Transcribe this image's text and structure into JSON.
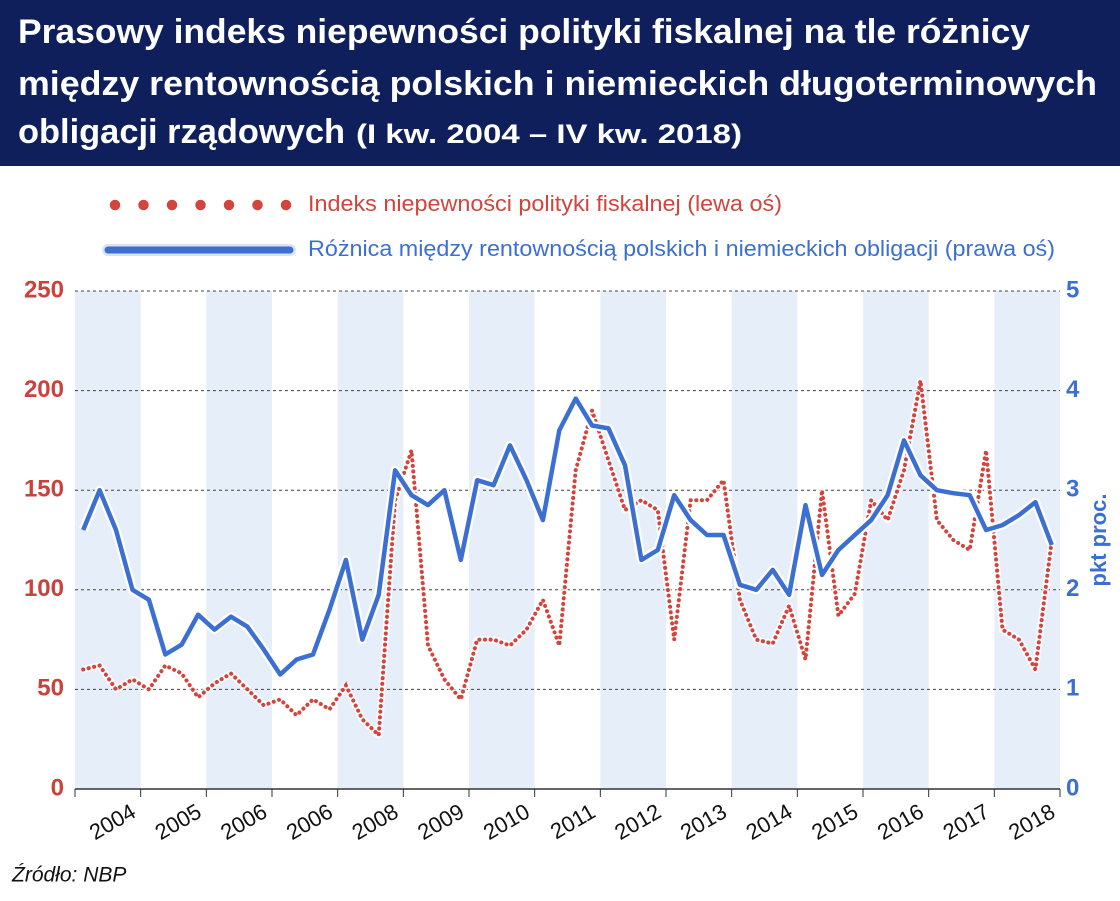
{
  "chart_data": {
    "type": "line",
    "title_lines": [
      "Prasowy indeks niepewności polityki fiskalnej na tle różnicy",
      "między rentownością polskich i niemieckich długoterminowych",
      "obligacji rządowych"
    ],
    "title_period": "(I kw. 2004 – IV kw. 2018)",
    "y2_label": "pkt proc.",
    "source": "Źródło: NBP",
    "categories": [
      null,
      null,
      null,
      "2004",
      null,
      null,
      null,
      "2005",
      null,
      null,
      null,
      "2006",
      null,
      null,
      null,
      "2006",
      null,
      null,
      null,
      "2008",
      null,
      null,
      null,
      "2009",
      null,
      null,
      null,
      "2010",
      null,
      null,
      null,
      "2011",
      null,
      null,
      null,
      "2012",
      null,
      null,
      null,
      "2013",
      null,
      null,
      null,
      "2014",
      null,
      null,
      null,
      "2015",
      null,
      null,
      null,
      "2016",
      null,
      null,
      null,
      "2017",
      null,
      null,
      null,
      "2018"
    ],
    "series": [
      {
        "name": "Indeks niepewności polityki fiskalnej (lewa oś)",
        "color": "#d2443c",
        "style": "dotted",
        "values": [
          60,
          62,
          50,
          55,
          50,
          62,
          58,
          46,
          53,
          58,
          50,
          42,
          45,
          37,
          45,
          40,
          52,
          35,
          27,
          145,
          170,
          72,
          55,
          45,
          75,
          75,
          72,
          80,
          95,
          72,
          160,
          190,
          165,
          140,
          145,
          140,
          75,
          145,
          145,
          155,
          95,
          75,
          73,
          92,
          65,
          150,
          87,
          98,
          145,
          135,
          160,
          205,
          135,
          125,
          120,
          170,
          80,
          75,
          60,
          125
        ]
      },
      {
        "name": "Różnica między rentownością polskich i niemieckich obligacji (prawa oś)",
        "color": "#3c6fd2",
        "style": "solid",
        "axis": "y2",
        "values": [
          2.6,
          3.0,
          2.6,
          2.0,
          1.9,
          1.35,
          1.45,
          1.75,
          1.6,
          1.73,
          1.63,
          1.4,
          1.15,
          1.3,
          1.35,
          1.8,
          2.3,
          1.5,
          1.95,
          3.2,
          2.95,
          2.85,
          3.0,
          2.3,
          3.1,
          3.05,
          3.45,
          3.1,
          2.7,
          3.6,
          3.92,
          3.65,
          3.62,
          3.25,
          2.3,
          2.4,
          2.95,
          2.7,
          2.55,
          2.55,
          2.05,
          2.0,
          2.2,
          1.95,
          2.85,
          2.15,
          2.4,
          2.55,
          2.7,
          2.95,
          3.5,
          3.15,
          3.0,
          2.97,
          2.95,
          2.6,
          2.65,
          2.75,
          2.88,
          2.45
        ]
      }
    ],
    "ylim": [
      0,
      250
    ],
    "yticks": [
      0,
      50,
      100,
      150,
      200,
      250
    ],
    "y2lim": [
      0,
      5
    ],
    "y2ticks": [
      0,
      1,
      2,
      3,
      4,
      5
    ],
    "grid": true
  }
}
